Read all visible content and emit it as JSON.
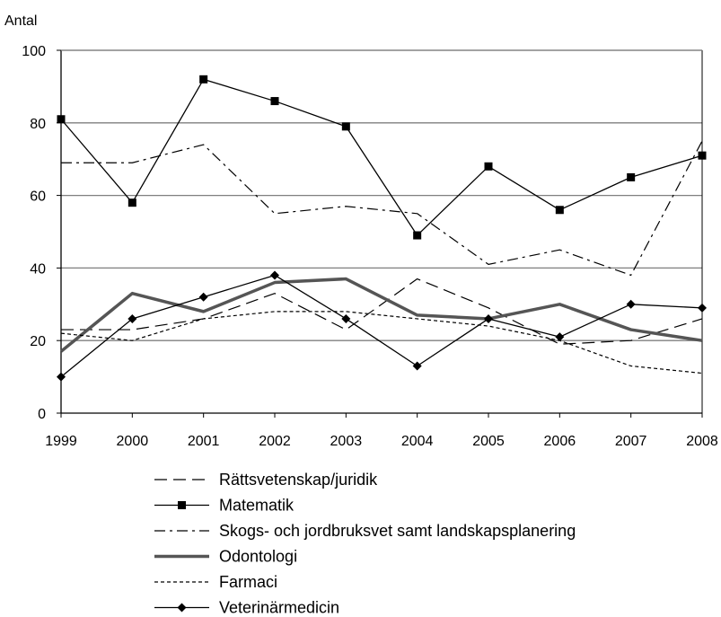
{
  "chart_data": {
    "type": "line",
    "title": "",
    "ylabel": "Antal",
    "xlabel": "",
    "x": [
      "1999",
      "2000",
      "2001",
      "2002",
      "2003",
      "2004",
      "2005",
      "2006",
      "2007",
      "2008"
    ],
    "ylim": [
      0,
      100
    ],
    "yticks": [
      "0",
      "20",
      "40",
      "60",
      "80",
      "100"
    ],
    "grid": true,
    "legend_position": "bottom",
    "series": [
      {
        "name": "Rättsvetenskap/juridik",
        "values": [
          23,
          23,
          26,
          33,
          23,
          37,
          29,
          19,
          20,
          26
        ],
        "color": "#000000",
        "style": "long-dash",
        "marker": "none"
      },
      {
        "name": "Matematik",
        "values": [
          81,
          58,
          92,
          86,
          79,
          49,
          68,
          56,
          65,
          71
        ],
        "color": "#000000",
        "style": "solid",
        "marker": "square"
      },
      {
        "name": "Skogs- och jordbruksvet samt landskapsplanering",
        "values": [
          69,
          69,
          74,
          55,
          57,
          55,
          41,
          45,
          38,
          75
        ],
        "color": "#000000",
        "style": "dash-dot",
        "marker": "none"
      },
      {
        "name": "Odontologi",
        "values": [
          17,
          33,
          28,
          36,
          37,
          27,
          26,
          30,
          23,
          20
        ],
        "color": "#555555",
        "style": "thick",
        "marker": "none"
      },
      {
        "name": "Farmaci",
        "values": [
          22,
          20,
          26,
          28,
          28,
          26,
          24,
          20,
          13,
          11
        ],
        "color": "#000000",
        "style": "short-dash",
        "marker": "none"
      },
      {
        "name": "Veterinärmedicin",
        "values": [
          10,
          26,
          32,
          38,
          26,
          13,
          26,
          21,
          30,
          29
        ],
        "color": "#000000",
        "style": "solid",
        "marker": "diamond"
      }
    ]
  }
}
